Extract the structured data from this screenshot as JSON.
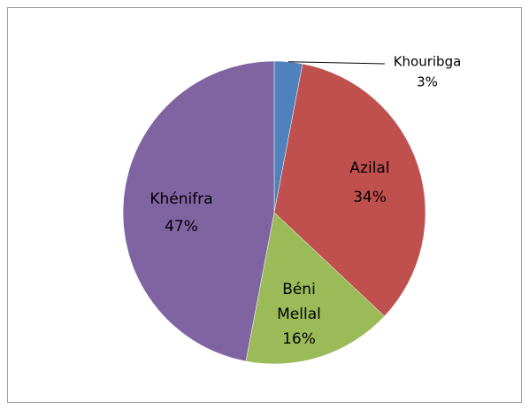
{
  "chart_data": {
    "type": "pie",
    "categories": [
      "Khouribga",
      "Azilal",
      "Béni Mellal",
      "Khénifra"
    ],
    "values": [
      3,
      34,
      16,
      47
    ],
    "value_labels": [
      "3%",
      "34%",
      "16%",
      "47%"
    ],
    "colors": [
      "#4f81bd",
      "#c0504d",
      "#9bbb59",
      "#8064a2"
    ]
  }
}
